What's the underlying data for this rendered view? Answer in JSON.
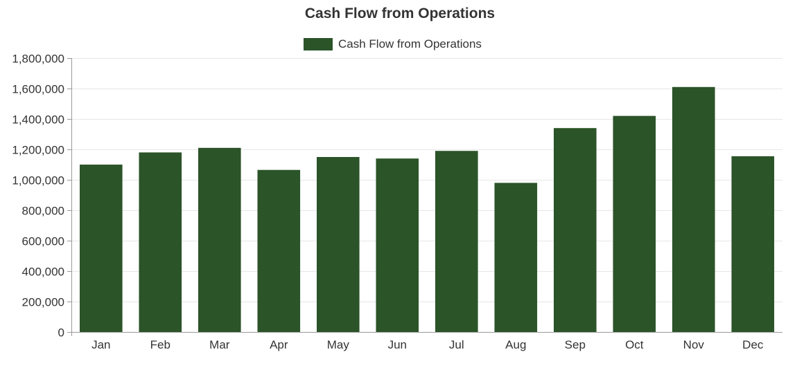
{
  "chart_data": {
    "type": "bar",
    "title": "Cash Flow from Operations",
    "xlabel": "",
    "ylabel": "",
    "categories": [
      "Jan",
      "Feb",
      "Mar",
      "Apr",
      "May",
      "Jun",
      "Jul",
      "Aug",
      "Sep",
      "Oct",
      "Nov",
      "Dec"
    ],
    "series": [
      {
        "name": "Cash Flow from Operations",
        "color": "#2b5429",
        "values": [
          1100000,
          1180000,
          1210000,
          1065000,
          1150000,
          1140000,
          1190000,
          980000,
          1340000,
          1420000,
          1610000,
          1155000
        ]
      }
    ],
    "ylim": [
      0,
      1800000
    ],
    "ytick_step": 200000,
    "y_tick_labels": [
      "0",
      "200,000",
      "400,000",
      "600,000",
      "800,000",
      "1,000,000",
      "1,200,000",
      "1,400,000",
      "1,600,000",
      "1,800,000"
    ],
    "grid": true,
    "legend_position": "top-center"
  }
}
